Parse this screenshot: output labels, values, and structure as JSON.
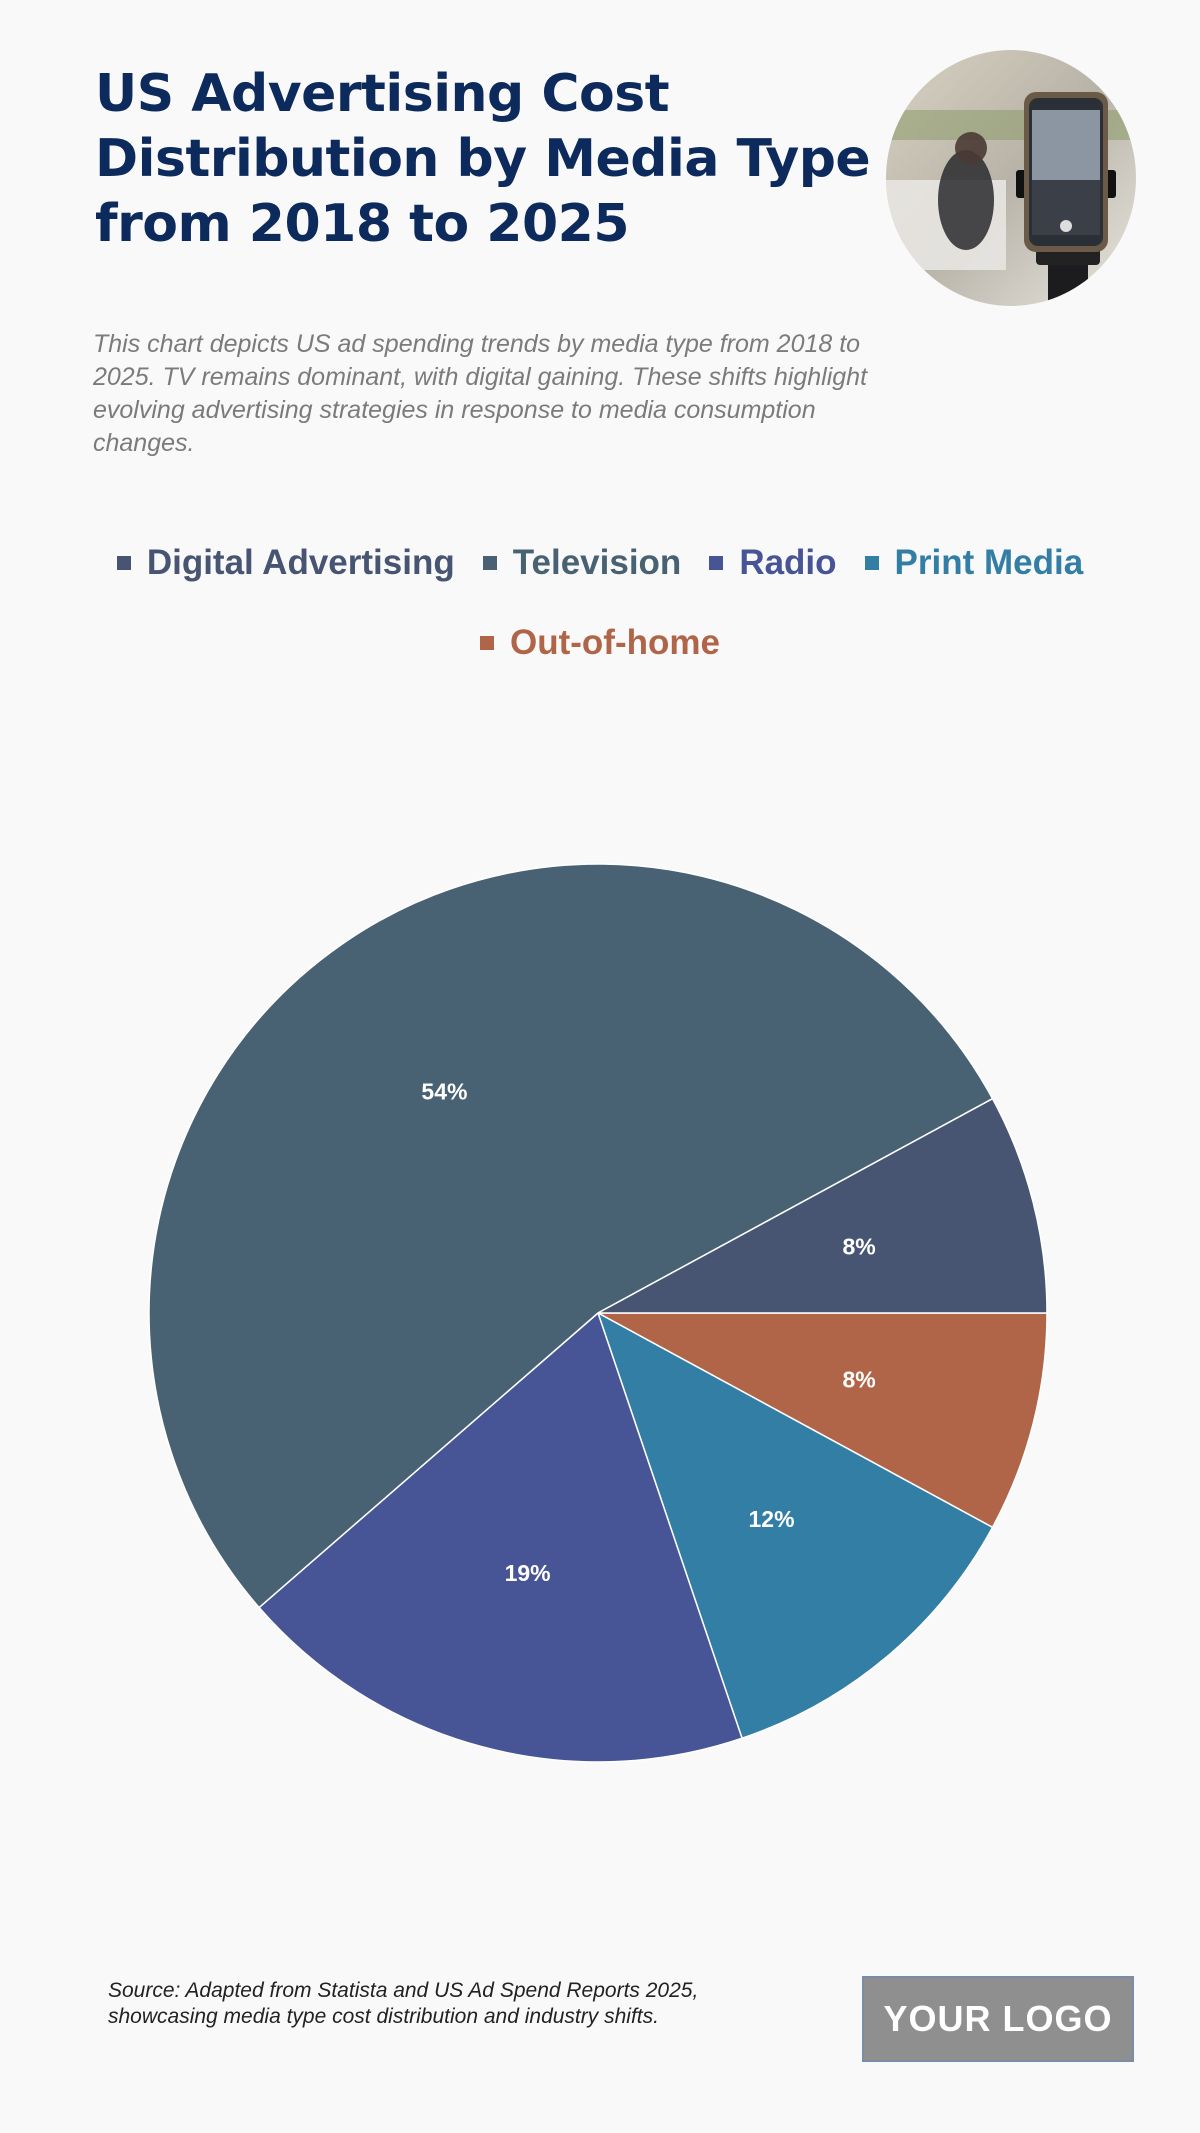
{
  "header": {
    "title": "US Advertising Cost Distribution by Media Type from 2018 to 2025",
    "subtitle": "This chart depicts US ad spending trends by media type from 2018 to 2025. TV remains dominant, with digital gaining. These shifts highlight evolving advertising strategies in response to media consumption changes."
  },
  "chart_data": {
    "type": "pie",
    "title": "US Advertising Cost Distribution by Media Type from 2018 to 2025",
    "legend_position": "top",
    "slices": [
      {
        "name": "Digital Advertising",
        "value": 8,
        "label": "8%",
        "color": "#475572"
      },
      {
        "name": "Television",
        "value": 54,
        "label": "54%",
        "color": "#486273"
      },
      {
        "name": "Radio",
        "value": 19,
        "label": "19%",
        "color": "#475597"
      },
      {
        "name": "Print Media",
        "value": 12,
        "label": "12%",
        "color": "#327ea4"
      },
      {
        "name": "Out-of-home",
        "value": 8,
        "label": "8%",
        "color": "#b06548"
      }
    ],
    "slice_order_clockwise_from_right": [
      "Out-of-home",
      "Print Media",
      "Radio",
      "Television",
      "Digital Advertising"
    ]
  },
  "footer": {
    "source": "Source: Adapted from Statista and US Ad Spend Reports 2025, showcasing media type cost distribution and industry shifts.",
    "logo_text": "YOUR LOGO"
  }
}
